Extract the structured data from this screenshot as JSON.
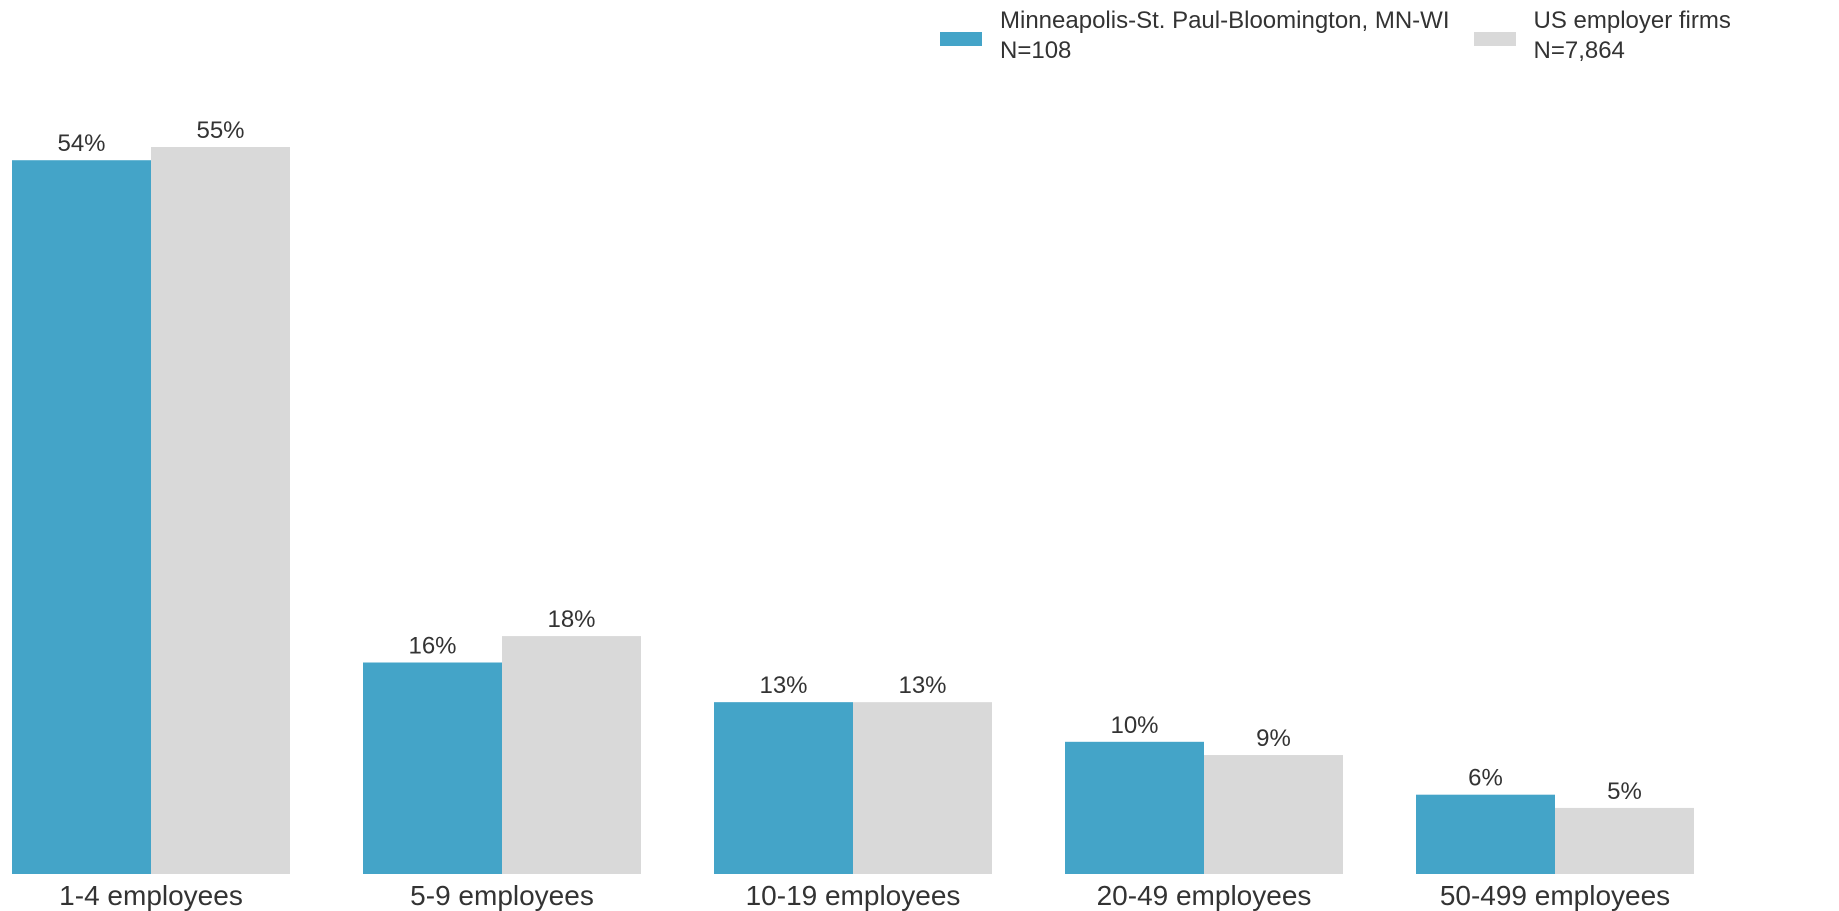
{
  "chart_data": {
    "type": "bar",
    "categories": [
      "1-4 employees",
      "5-9 employees",
      "10-19 employees",
      "20-49 employees",
      "50-499 employees"
    ],
    "series": [
      {
        "name": "Minneapolis-St. Paul-Bloomington, MN-WI",
        "sample": "N=108",
        "color": "#44a4c8",
        "values": [
          54,
          16,
          13,
          10,
          6
        ],
        "labels": [
          "54%",
          "16%",
          "13%",
          "10%",
          "6%"
        ]
      },
      {
        "name": "US employer firms",
        "sample": "N=7,864",
        "color": "#d9d9d9",
        "values": [
          55,
          18,
          13,
          9,
          5
        ],
        "labels": [
          "55%",
          "18%",
          "13%",
          "9%",
          "5%"
        ]
      }
    ],
    "ylim": [
      0,
      55
    ],
    "grid": false,
    "legend_position": "top-right"
  }
}
